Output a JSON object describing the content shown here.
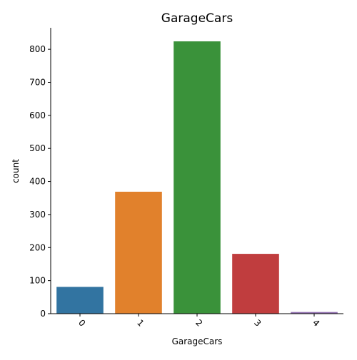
{
  "chart_data": {
    "type": "bar",
    "title": "GarageCars",
    "xlabel": "GarageCars",
    "ylabel": "count",
    "categories": [
      "0",
      "1",
      "2",
      "3",
      "4"
    ],
    "values": [
      81,
      369,
      824,
      181,
      5
    ],
    "colors": [
      "#3274a1",
      "#e1812c",
      "#3a923a",
      "#c03d3e",
      "#9372b2"
    ],
    "ylim": [
      0,
      865
    ],
    "yticks": [
      0,
      100,
      200,
      300,
      400,
      500,
      600,
      700,
      800
    ],
    "grid": false,
    "legend": "none"
  }
}
